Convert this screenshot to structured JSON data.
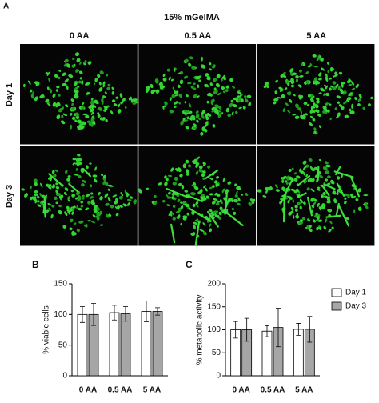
{
  "panel_a": {
    "label": "A",
    "title": "15% mGelMA",
    "columns": [
      "0 AA",
      "0.5 AA",
      "5 AA"
    ],
    "rows": [
      "Day 1",
      "Day 3"
    ]
  },
  "chart_data": [
    {
      "type": "bar",
      "label": "B",
      "y_label": "% viable cells",
      "categories": [
        "0 AA",
        "0.5 AA",
        "5 AA"
      ],
      "series": [
        {
          "name": "Day 1",
          "color": "#ffffff",
          "values": [
            100,
            103,
            105
          ],
          "errors": [
            13,
            12,
            17
          ]
        },
        {
          "name": "Day 3",
          "color": "#a6a6a6",
          "values": [
            100,
            101,
            105
          ],
          "errors": [
            18,
            12,
            6
          ]
        }
      ],
      "ylim": [
        0,
        150
      ],
      "yticks": [
        0,
        50,
        100,
        150
      ]
    },
    {
      "type": "bar",
      "label": "C",
      "y_label": "% metabolic activity",
      "categories": [
        "0 AA",
        "0.5 AA",
        "5 AA"
      ],
      "series": [
        {
          "name": "Day 1",
          "color": "#ffffff",
          "values": [
            100,
            97,
            101
          ],
          "errors": [
            18,
            12,
            13
          ]
        },
        {
          "name": "Day 3",
          "color": "#a6a6a6",
          "values": [
            100,
            105,
            101
          ],
          "errors": [
            25,
            42,
            28
          ]
        }
      ],
      "ylim": [
        0,
        200
      ],
      "yticks": [
        0,
        50,
        100,
        150,
        200
      ],
      "legend": "right"
    }
  ]
}
